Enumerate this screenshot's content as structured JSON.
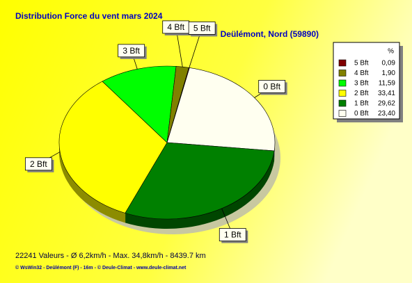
{
  "chart_data": {
    "type": "pie",
    "title": "Distribution Force du vent  mars 2024",
    "subtitle": "Deülémont, Nord (59890)",
    "legend_header": "%",
    "categories": [
      "5 Bft",
      "4 Bft",
      "3 Bft",
      "2 Bft",
      "1 Bft",
      "0 Bft"
    ],
    "values": [
      0.09,
      1.9,
      11.59,
      33.41,
      29.62,
      23.4
    ],
    "value_labels": [
      "0,09",
      "1,90",
      "11,59",
      "33,41",
      "29,62",
      "23,40"
    ],
    "colors": [
      "#800000",
      "#808000",
      "#00ff00",
      "#ffff00",
      "#008000",
      "#fffff0"
    ],
    "legend_position": "upper right",
    "footer": "22241 Valeurs   -   Ø 6,2km/h  -  Max. 34,8km/h   -   8439.7 km",
    "credits": "© WsWin32  -  Deûlémont (F) - 16m  -  © Deule-Climat - www.deule-climat.net"
  }
}
